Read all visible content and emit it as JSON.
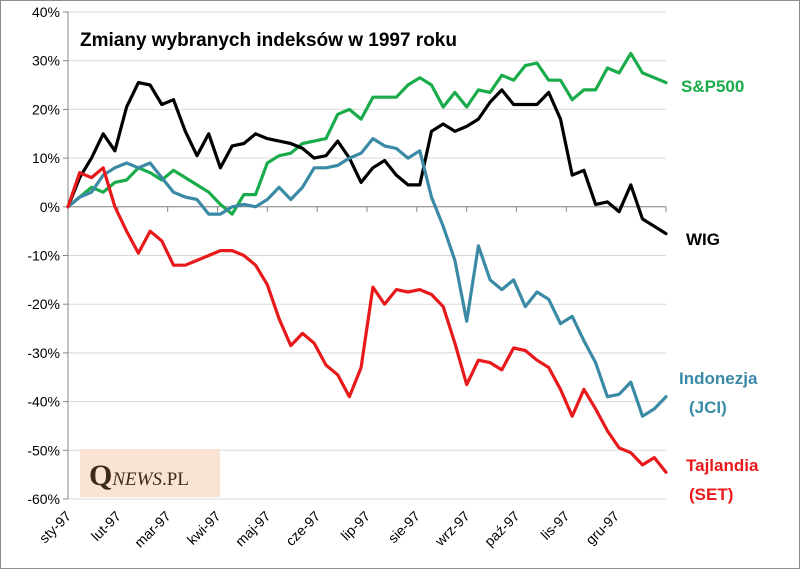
{
  "chart_data": {
    "type": "line",
    "title": "Zmiany wybranych indeksów w 1997 roku",
    "xlabel": "",
    "ylabel": "",
    "ylim": [
      -60,
      40
    ],
    "y_ticks": [
      40,
      30,
      20,
      10,
      0,
      -10,
      -20,
      -30,
      -40,
      -50,
      -60
    ],
    "y_tick_labels": [
      "40%",
      "30%",
      "20%",
      "10%",
      "0%",
      "-10%",
      "-20%",
      "-30%",
      "-40%",
      "-50%",
      "-60%"
    ],
    "x_tick_labels": [
      "sty-97",
      "lut-97",
      "mar-97",
      "kwi-97",
      "maj-97",
      "cze-97",
      "lip-97",
      "sie-97",
      "wrz-97",
      "paź-97",
      "lis-97",
      "gru-97"
    ],
    "grid": "horizontal",
    "series": [
      {
        "name": "S&P500",
        "color": "#1aab4a",
        "values": [
          0,
          2,
          4,
          3,
          5,
          5.5,
          8,
          7,
          5.5,
          7.5,
          6,
          4.5,
          3,
          0.5,
          -1.5,
          2.5,
          2.5,
          9,
          10.5,
          11,
          13,
          13.5,
          14,
          19,
          20,
          18,
          22.5,
          22.5,
          22.5,
          25,
          26.5,
          25,
          20.5,
          23.5,
          20.5,
          24,
          23.5,
          27,
          26,
          29,
          29.5,
          26,
          26,
          22,
          24,
          24,
          28.5,
          27.5,
          31.5,
          27.5,
          26.5,
          25.5
        ]
      },
      {
        "name": "WIG",
        "color": "#000000",
        "values": [
          0,
          6,
          10,
          15,
          11.5,
          20.5,
          25.5,
          25,
          21,
          22,
          15.5,
          10.5,
          15,
          8,
          12.5,
          13,
          15,
          14,
          13.5,
          13,
          12,
          10,
          10.5,
          13.5,
          10,
          5,
          8,
          9.5,
          6.5,
          4.5,
          4.5,
          15.5,
          17,
          15.5,
          16.5,
          18,
          21.5,
          24,
          21,
          21,
          21,
          23.5,
          18,
          6.5,
          7.5,
          0.5,
          1,
          -1,
          4.5,
          -2.5,
          -4,
          -5.5
        ]
      },
      {
        "name": "Indonezja (JCI)",
        "color": "#3a8aa6",
        "values": [
          0,
          2,
          3,
          6.5,
          8,
          9,
          8,
          9,
          6,
          3,
          2,
          1.5,
          -1.5,
          -1.5,
          0,
          0.5,
          0,
          1.5,
          4,
          1.5,
          4,
          8,
          8,
          8.5,
          10,
          11,
          14,
          12.5,
          12,
          10,
          11.5,
          2,
          -4,
          -11,
          -23.5,
          -8,
          -15,
          -17,
          -15,
          -20.5,
          -17.5,
          -19,
          -24,
          -22.5,
          -27.5,
          -32,
          -39,
          -38.5,
          -36,
          -43,
          -41.5,
          -39
        ]
      },
      {
        "name": "Tajlandia (SET)",
        "color": "#e8191a",
        "values": [
          0,
          7,
          6,
          8,
          0,
          -5,
          -9.5,
          -5,
          -7,
          -12,
          -12,
          -11,
          -10,
          -9,
          -9,
          -10,
          -12,
          -16,
          -23,
          -28.5,
          -26,
          -28,
          -32.5,
          -34.5,
          -39,
          -33,
          -16.5,
          -20,
          -17,
          -17.5,
          -17,
          -18,
          -20.5,
          -28,
          -36.5,
          -31.5,
          -32,
          -33.5,
          -29,
          -29.5,
          -31.5,
          -33,
          -37.5,
          -43,
          -37.5,
          -41.5,
          -46,
          -49.5,
          -50.5,
          -53,
          -51.5,
          -54.5
        ]
      }
    ],
    "labels": {
      "sp": "S&P500",
      "wig": "WIG",
      "jci_1": "Indonezja",
      "jci_2": "(JCI)",
      "set_1": "Tajlandia",
      "set_2": "(SET)"
    }
  },
  "logo": {
    "first": "Q",
    "rest": "NEWS",
    "suffix": ".PL"
  }
}
